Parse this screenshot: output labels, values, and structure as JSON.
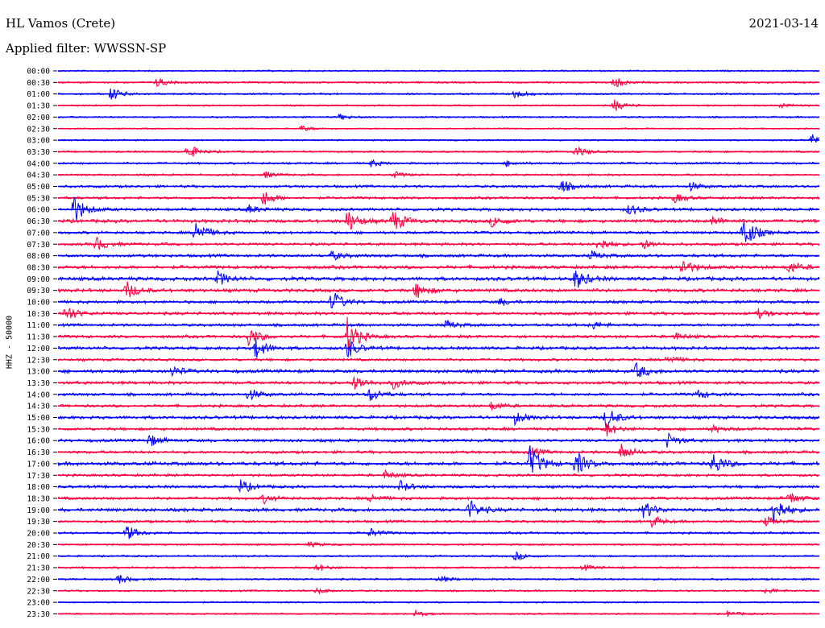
{
  "header": {
    "station": "HL Vamos (Crete)",
    "date": "2021-03-14",
    "filter": "Applied filter: WWSSN-SP"
  },
  "chart_data": {
    "type": "helicorder",
    "ylabel": "HHZ - 50000",
    "colors": {
      "even": "#0000ff",
      "odd": "#ff0040"
    },
    "rows": [
      {
        "label": "00:00",
        "activity": 0.15,
        "events": []
      },
      {
        "label": "00:30",
        "activity": 0.2,
        "events": [
          [
            0.13,
            0.5
          ],
          [
            0.73,
            0.7
          ]
        ]
      },
      {
        "label": "01:00",
        "activity": 0.2,
        "events": [
          [
            0.07,
            0.8
          ],
          [
            0.6,
            0.5
          ]
        ]
      },
      {
        "label": "01:30",
        "activity": 0.15,
        "events": [
          [
            0.73,
            0.7
          ],
          [
            0.95,
            0.3
          ]
        ]
      },
      {
        "label": "02:00",
        "activity": 0.2,
        "events": [
          [
            0.37,
            0.3
          ]
        ]
      },
      {
        "label": "02:30",
        "activity": 0.1,
        "events": [
          [
            0.32,
            0.3
          ]
        ]
      },
      {
        "label": "03:00",
        "activity": 0.15,
        "events": [
          [
            0.99,
            0.7
          ]
        ]
      },
      {
        "label": "03:30",
        "activity": 0.2,
        "events": [
          [
            0.17,
            0.9
          ],
          [
            0.68,
            0.6
          ]
        ]
      },
      {
        "label": "04:00",
        "activity": 0.3,
        "events": [
          [
            0.41,
            0.4
          ],
          [
            0.59,
            0.3
          ]
        ]
      },
      {
        "label": "04:30",
        "activity": 0.25,
        "events": [
          [
            0.27,
            0.4
          ],
          [
            0.44,
            0.4
          ]
        ]
      },
      {
        "label": "05:00",
        "activity": 0.4,
        "events": [
          [
            0.66,
            0.8
          ],
          [
            0.83,
            0.5
          ]
        ]
      },
      {
        "label": "05:30",
        "activity": 0.4,
        "events": [
          [
            0.27,
            0.9
          ],
          [
            0.81,
            0.5
          ]
        ]
      },
      {
        "label": "06:00",
        "activity": 0.5,
        "events": [
          [
            0.02,
            1.8
          ],
          [
            0.25,
            0.5
          ],
          [
            0.75,
            0.6
          ]
        ]
      },
      {
        "label": "06:30",
        "activity": 0.6,
        "events": [
          [
            0.38,
            1.3
          ],
          [
            0.44,
            1.3
          ],
          [
            0.57,
            0.6
          ],
          [
            0.86,
            0.5
          ]
        ]
      },
      {
        "label": "07:00",
        "activity": 0.45,
        "events": [
          [
            0.18,
            1.5
          ],
          [
            0.9,
            2.2
          ]
        ]
      },
      {
        "label": "07:30",
        "activity": 0.45,
        "events": [
          [
            0.05,
            0.8
          ],
          [
            0.71,
            0.8
          ],
          [
            0.77,
            0.5
          ]
        ]
      },
      {
        "label": "08:00",
        "activity": 0.5,
        "events": [
          [
            0.36,
            0.5
          ],
          [
            0.7,
            0.5
          ]
        ]
      },
      {
        "label": "08:30",
        "activity": 0.6,
        "events": [
          [
            0.82,
            1.0
          ],
          [
            0.96,
            0.7
          ]
        ]
      },
      {
        "label": "09:00",
        "activity": 0.7,
        "events": [
          [
            0.21,
            0.8
          ],
          [
            0.68,
            1.2
          ]
        ]
      },
      {
        "label": "09:30",
        "activity": 0.6,
        "events": [
          [
            0.09,
            1.0
          ],
          [
            0.47,
            0.9
          ]
        ]
      },
      {
        "label": "10:00",
        "activity": 0.5,
        "events": [
          [
            0.36,
            1.3
          ],
          [
            0.58,
            0.4
          ]
        ]
      },
      {
        "label": "10:30",
        "activity": 0.5,
        "events": [
          [
            0.01,
            1.0
          ],
          [
            0.92,
            0.5
          ]
        ]
      },
      {
        "label": "11:00",
        "activity": 0.45,
        "events": [
          [
            0.51,
            0.5
          ],
          [
            0.7,
            0.5
          ]
        ]
      },
      {
        "label": "11:30",
        "activity": 0.5,
        "events": [
          [
            0.25,
            1.1
          ],
          [
            0.38,
            2.2
          ],
          [
            0.81,
            0.4
          ]
        ]
      },
      {
        "label": "12:00",
        "activity": 0.55,
        "events": [
          [
            0.26,
            1.2
          ],
          [
            0.38,
            1.1
          ]
        ]
      },
      {
        "label": "12:30",
        "activity": 0.4,
        "events": [
          [
            0.8,
            0.5
          ]
        ]
      },
      {
        "label": "13:00",
        "activity": 0.6,
        "events": [
          [
            0.15,
            0.6
          ],
          [
            0.76,
            0.9
          ]
        ]
      },
      {
        "label": "13:30",
        "activity": 0.5,
        "events": [
          [
            0.39,
            0.9
          ],
          [
            0.44,
            0.6
          ]
        ]
      },
      {
        "label": "14:00",
        "activity": 0.5,
        "events": [
          [
            0.25,
            0.7
          ],
          [
            0.41,
            0.8
          ],
          [
            0.84,
            0.5
          ]
        ]
      },
      {
        "label": "14:30",
        "activity": 0.45,
        "events": [
          [
            0.57,
            0.5
          ]
        ]
      },
      {
        "label": "15:00",
        "activity": 0.55,
        "events": [
          [
            0.6,
            0.7
          ],
          [
            0.72,
            1.4
          ]
        ]
      },
      {
        "label": "15:30",
        "activity": 0.5,
        "events": [
          [
            0.72,
            0.8
          ],
          [
            0.86,
            0.4
          ]
        ]
      },
      {
        "label": "16:00",
        "activity": 0.5,
        "events": [
          [
            0.12,
            0.7
          ],
          [
            0.8,
            0.8
          ]
        ]
      },
      {
        "label": "16:30",
        "activity": 0.45,
        "events": [
          [
            0.74,
            0.9
          ],
          [
            0.62,
            0.6
          ]
        ]
      },
      {
        "label": "17:00",
        "activity": 0.7,
        "events": [
          [
            0.62,
            2.0
          ],
          [
            0.68,
            1.4
          ],
          [
            0.86,
            1.3
          ]
        ]
      },
      {
        "label": "17:30",
        "activity": 0.4,
        "events": [
          [
            0.43,
            0.5
          ]
        ]
      },
      {
        "label": "18:00",
        "activity": 0.45,
        "events": [
          [
            0.24,
            0.8
          ],
          [
            0.45,
            0.6
          ]
        ]
      },
      {
        "label": "18:30",
        "activity": 0.45,
        "events": [
          [
            0.27,
            0.5
          ],
          [
            0.41,
            0.5
          ],
          [
            0.96,
            0.7
          ]
        ]
      },
      {
        "label": "19:00",
        "activity": 0.6,
        "events": [
          [
            0.54,
            1.2
          ],
          [
            0.77,
            1.0
          ],
          [
            0.94,
            1.8
          ]
        ]
      },
      {
        "label": "19:30",
        "activity": 0.4,
        "events": [
          [
            0.78,
            0.6
          ],
          [
            0.93,
            0.5
          ]
        ]
      },
      {
        "label": "20:00",
        "activity": 0.3,
        "events": [
          [
            0.09,
            0.9
          ],
          [
            0.41,
            0.5
          ]
        ]
      },
      {
        "label": "20:30",
        "activity": 0.2,
        "events": [
          [
            0.33,
            0.3
          ]
        ]
      },
      {
        "label": "21:00",
        "activity": 0.2,
        "events": [
          [
            0.6,
            0.5
          ]
        ]
      },
      {
        "label": "21:30",
        "activity": 0.25,
        "events": [
          [
            0.34,
            0.4
          ],
          [
            0.69,
            0.3
          ]
        ]
      },
      {
        "label": "22:00",
        "activity": 0.25,
        "events": [
          [
            0.08,
            0.5
          ],
          [
            0.5,
            0.4
          ]
        ]
      },
      {
        "label": "22:30",
        "activity": 0.2,
        "events": [
          [
            0.34,
            0.3
          ],
          [
            0.93,
            0.3
          ]
        ]
      },
      {
        "label": "23:00",
        "activity": 0.15,
        "events": []
      },
      {
        "label": "23:30",
        "activity": 0.15,
        "events": [
          [
            0.47,
            0.3
          ],
          [
            0.88,
            0.3
          ]
        ]
      }
    ]
  }
}
